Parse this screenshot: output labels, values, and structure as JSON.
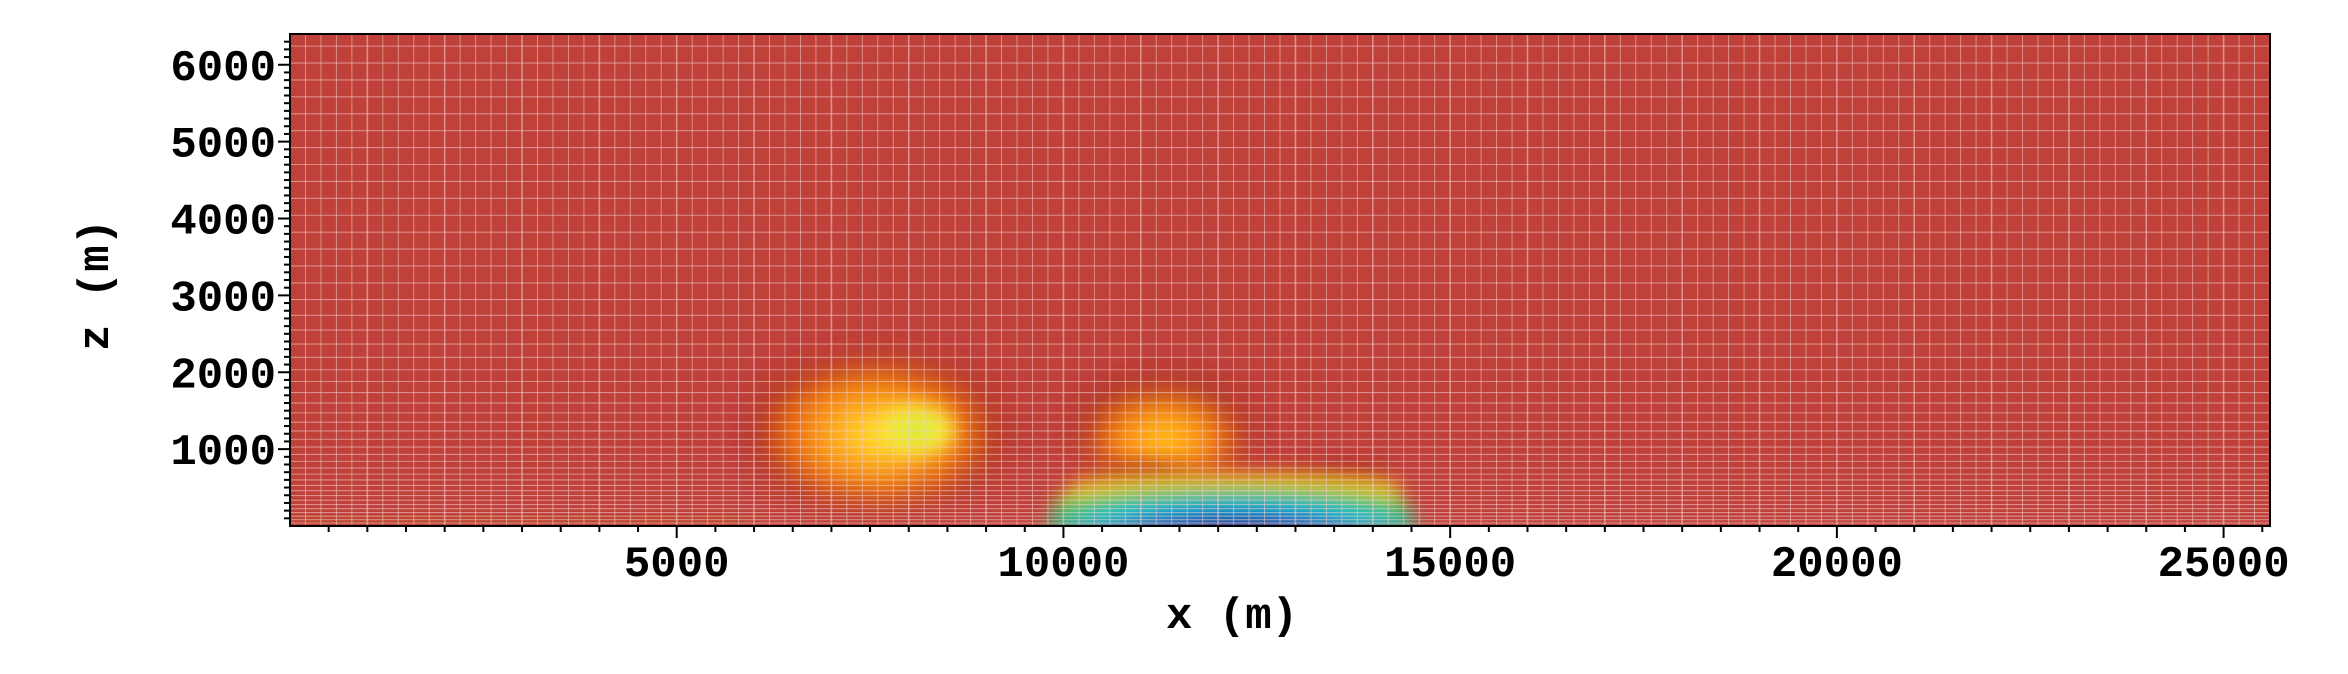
{
  "chart_data": {
    "type": "heatmap",
    "title": "",
    "xlabel": "x (m)",
    "ylabel": "z (m)",
    "xlim": [
      0,
      25600
    ],
    "ylim": [
      0,
      6400
    ],
    "x_ticks": [
      5000,
      10000,
      15000,
      20000,
      25000
    ],
    "x_tick_labels": [
      "5000",
      "10000",
      "15000",
      "20000",
      "25000"
    ],
    "y_ticks": [
      1000,
      2000,
      3000,
      4000,
      5000,
      6000
    ],
    "y_tick_labels": [
      "1000",
      "2000",
      "3000",
      "4000",
      "5000",
      "6000"
    ],
    "grid": true,
    "colormap": "jet",
    "background_color": "#c0403a",
    "colors": {
      "grid": "#f2d0cc",
      "cold_core": "#0a1a8c",
      "warm": "#ff9a1a"
    },
    "features": [
      {
        "name": "",
        "kind": "rotor",
        "x": 7600,
        "z": 1200,
        "rx": 1600,
        "rz": 1000,
        "level": 0.55
      },
      {
        "name": "",
        "kind": "rotor-core",
        "x": 8100,
        "z": 1250,
        "rx": 500,
        "rz": 330,
        "level": 0.35
      },
      {
        "name": "",
        "kind": "rotor",
        "x": 11300,
        "z": 1200,
        "rx": 1100,
        "rz": 700,
        "level": 0.45
      },
      {
        "name": "",
        "kind": "head",
        "x": 12200,
        "z": 400,
        "rx": 2400,
        "rz": 500,
        "level": 0.0
      },
      {
        "name": "",
        "kind": "surface-layer",
        "x_start": 0,
        "x_end": 6000,
        "z_top": 120,
        "level": 0.75
      }
    ]
  }
}
